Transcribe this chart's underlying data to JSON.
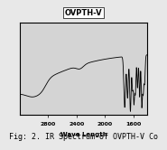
{
  "title": "OVPTH-V",
  "xlabel": "Wave Length",
  "x_ticks": [
    2800,
    2400,
    2000,
    1600
  ],
  "xlim": [
    3200,
    1400
  ],
  "ylim": [
    0,
    1
  ],
  "background_color": "#e8e8e8",
  "plot_bg_color": "#d4d4d4",
  "caption": "Fig: 2. IR Spectrum of OVPTH-V Co",
  "caption_fontsize": 6
}
